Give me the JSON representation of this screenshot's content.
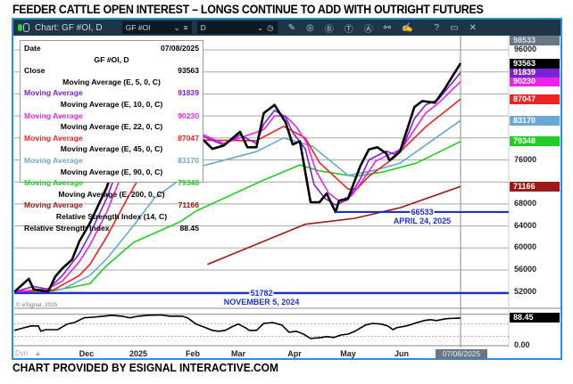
{
  "title": "FEEDER CATTLE OPEN INTEREST – LONGS CONTINUE TO ADD WITH OUTRIGHT FUTURES",
  "footer": "CHART PROVIDED BY ESIGNAL INTERACTIVE.COM",
  "toolbar": {
    "chart_label": "Chart: GF #OI, D",
    "symbol_value": "GF #OI",
    "interval_value": "D",
    "icons": [
      "status-dot-icon",
      "chevron-down-icon",
      "list-icon",
      "clock-icon",
      "pencil-icon",
      "wave-icon",
      "b-circle-icon",
      "t-circle-icon",
      "a-circle-icon",
      "link-icon",
      "edit-icon",
      "help-icon",
      "window-icon",
      "close-icon"
    ],
    "help": "?",
    "close": "✕"
  },
  "legend": {
    "date_label": "Date",
    "date_value": "07/08/2025",
    "symbol": "GF #OI, D",
    "close_label": "Close",
    "close_value": "93563",
    "rows": [
      {
        "header": "Moving Average (E, 5, 0, C)",
        "label": "Moving Average",
        "value": "91839",
        "color": "#7b22d6"
      },
      {
        "header": "Moving Average (E, 10, 0, C)",
        "label": "Moving Average",
        "value": "90230",
        "color": "#ee22ee"
      },
      {
        "header": "Moving Average (E, 22, 0, C)",
        "label": "Moving Average",
        "value": "87047",
        "color": "#ee2222"
      },
      {
        "header": "Moving Average (E, 45, 0, C)",
        "label": "Moving Average",
        "value": "83170",
        "color": "#6aa6d6"
      },
      {
        "header": "Moving Average (E, 90, 0, C)",
        "label": "Moving Average",
        "value": "79348",
        "color": "#22cc22"
      },
      {
        "header": "Moving Average (E, 200, 0, C)",
        "label": "Moving Average",
        "value": "71166",
        "color": "#a01818"
      }
    ],
    "rsi_header": "Relative Strength Index (14, C)",
    "rsi_label": "Relative Strength Index",
    "rsi_value": "88.45"
  },
  "copyright": "© eSignal, 2025",
  "dyn_label": "Dyn",
  "cursor_date": "07/08/2025",
  "chart_data": {
    "type": "line",
    "title": "FEEDER CATTLE OPEN INTEREST – LONGS CONTINUE TO ADD WITH OUTRIGHT FUTURES",
    "x_unit": "calendar days since 2024-11-01",
    "ylim": [
      50000,
      98533
    ],
    "y_top_label": "98533",
    "y_ticks": [
      "96000",
      "76000",
      "68000",
      "64000",
      "60000",
      "56000",
      "52000"
    ],
    "y_grid": [
      96000,
      92000,
      88000,
      84000,
      80000,
      76000,
      72000,
      68000,
      64000,
      60000,
      56000,
      52000
    ],
    "x_ticks": [
      {
        "label": "Dec",
        "day": 30
      },
      {
        "label": "2025",
        "day": 61
      },
      {
        "label": "Feb",
        "day": 92
      },
      {
        "label": "Mar",
        "day": 120
      },
      {
        "label": "Apr",
        "day": 151
      },
      {
        "label": "May",
        "day": 181
      },
      {
        "label": "Jun",
        "day": 212
      }
    ],
    "series": [
      {
        "name": "Close",
        "color": "#000000",
        "last": "93563",
        "points": [
          [
            0,
            52000
          ],
          [
            6,
            54400
          ],
          [
            8,
            52500
          ],
          [
            14,
            52000
          ],
          [
            17,
            54800
          ],
          [
            20,
            56300
          ],
          [
            24,
            57900
          ],
          [
            27,
            61200
          ],
          [
            32,
            64500
          ],
          [
            42,
            71000
          ],
          [
            50,
            77500
          ],
          [
            58,
            82400
          ],
          [
            66,
            84800
          ],
          [
            74,
            83200
          ],
          [
            81,
            81600
          ],
          [
            89,
            81600
          ],
          [
            99,
            79500
          ],
          [
            104,
            78000
          ],
          [
            111,
            78600
          ],
          [
            121,
            81100
          ],
          [
            125,
            78300
          ],
          [
            130,
            78300
          ],
          [
            134,
            84500
          ],
          [
            140,
            86000
          ],
          [
            146,
            82900
          ],
          [
            150,
            78800
          ],
          [
            154,
            79400
          ],
          [
            160,
            68300
          ],
          [
            165,
            68300
          ],
          [
            169,
            69900
          ],
          [
            174,
            66533
          ],
          [
            176,
            68600
          ],
          [
            181,
            69000
          ],
          [
            188,
            74800
          ],
          [
            193,
            77900
          ],
          [
            198,
            78300
          ],
          [
            203,
            77200
          ],
          [
            205,
            75900
          ],
          [
            211,
            77500
          ],
          [
            220,
            85600
          ],
          [
            225,
            86700
          ],
          [
            233,
            86400
          ],
          [
            239,
            88900
          ],
          [
            249,
            93563
          ]
        ]
      },
      {
        "name": "EMA 5",
        "color": "#7b22d6",
        "last": "91839",
        "points": [
          [
            0,
            52000
          ],
          [
            8,
            53000
          ],
          [
            14,
            52500
          ],
          [
            20,
            55000
          ],
          [
            27,
            59000
          ],
          [
            32,
            62500
          ],
          [
            42,
            69000
          ],
          [
            50,
            75500
          ],
          [
            58,
            80500
          ],
          [
            66,
            83500
          ],
          [
            74,
            83500
          ],
          [
            89,
            81800
          ],
          [
            99,
            80200
          ],
          [
            111,
            78700
          ],
          [
            121,
            80500
          ],
          [
            130,
            79000
          ],
          [
            134,
            82500
          ],
          [
            140,
            85000
          ],
          [
            146,
            83800
          ],
          [
            150,
            81000
          ],
          [
            157,
            78000
          ],
          [
            162,
            71500
          ],
          [
            168,
            69000
          ],
          [
            174,
            67800
          ],
          [
            181,
            68800
          ],
          [
            188,
            72500
          ],
          [
            193,
            76000
          ],
          [
            203,
            77600
          ],
          [
            208,
            77000
          ],
          [
            213,
            78500
          ],
          [
            220,
            83500
          ],
          [
            227,
            86000
          ],
          [
            235,
            87000
          ],
          [
            249,
            91839
          ]
        ]
      },
      {
        "name": "EMA 10",
        "color": "#ee22ee",
        "last": "90230",
        "points": [
          [
            0,
            52000
          ],
          [
            14,
            52600
          ],
          [
            20,
            54000
          ],
          [
            27,
            57500
          ],
          [
            32,
            60500
          ],
          [
            42,
            66500
          ],
          [
            50,
            72500
          ],
          [
            58,
            78000
          ],
          [
            66,
            82000
          ],
          [
            74,
            83300
          ],
          [
            89,
            82000
          ],
          [
            99,
            80500
          ],
          [
            111,
            79000
          ],
          [
            121,
            80000
          ],
          [
            134,
            81500
          ],
          [
            140,
            84000
          ],
          [
            146,
            84000
          ],
          [
            152,
            82000
          ],
          [
            158,
            79000
          ],
          [
            163,
            74000
          ],
          [
            170,
            70000
          ],
          [
            176,
            68500
          ],
          [
            183,
            69500
          ],
          [
            190,
            72500
          ],
          [
            197,
            75800
          ],
          [
            205,
            77000
          ],
          [
            212,
            78000
          ],
          [
            220,
            81500
          ],
          [
            227,
            84500
          ],
          [
            235,
            86300
          ],
          [
            249,
            90230
          ]
        ]
      },
      {
        "name": "EMA 22",
        "color": "#ee2222",
        "last": "87047",
        "points": [
          [
            0,
            52000
          ],
          [
            16,
            52300
          ],
          [
            27,
            55000
          ],
          [
            32,
            57000
          ],
          [
            42,
            62000
          ],
          [
            58,
            71000
          ],
          [
            66,
            75000
          ],
          [
            80,
            78500
          ],
          [
            100,
            79600
          ],
          [
            130,
            79500
          ],
          [
            145,
            82100
          ],
          [
            157,
            80000
          ],
          [
            165,
            75500
          ],
          [
            181,
            70700
          ],
          [
            186,
            70700
          ],
          [
            193,
            73000
          ],
          [
            208,
            76500
          ],
          [
            227,
            82000
          ],
          [
            249,
            87047
          ]
        ]
      },
      {
        "name": "EMA 45",
        "color": "#6aa6d6",
        "last": "83170",
        "points": [
          [
            0,
            52000
          ],
          [
            20,
            52500
          ],
          [
            32,
            55000
          ],
          [
            42,
            58000
          ],
          [
            58,
            64000
          ],
          [
            70,
            69000
          ],
          [
            85,
            72500
          ],
          [
            94,
            74600
          ],
          [
            130,
            77500
          ],
          [
            145,
            80000
          ],
          [
            161,
            78500
          ],
          [
            181,
            73200
          ],
          [
            195,
            74000
          ],
          [
            211,
            75400
          ],
          [
            249,
            83170
          ]
        ]
      },
      {
        "name": "EMA 90",
        "color": "#22cc22",
        "last": "79348",
        "points": [
          [
            0,
            51900
          ],
          [
            16,
            52200
          ],
          [
            32,
            53500
          ],
          [
            41,
            56500
          ],
          [
            58,
            61000
          ],
          [
            85,
            64800
          ],
          [
            94,
            66700
          ],
          [
            133,
            72200
          ],
          [
            154,
            75100
          ],
          [
            165,
            74000
          ],
          [
            185,
            73000
          ],
          [
            201,
            73800
          ],
          [
            221,
            75400
          ],
          [
            249,
            79348
          ]
        ]
      },
      {
        "name": "EMA 200",
        "color": "#a01818",
        "last": "71166",
        "points": [
          [
            101,
            57000
          ],
          [
            157,
            64300
          ],
          [
            185,
            65400
          ],
          [
            211,
            67300
          ],
          [
            249,
            71166
          ]
        ]
      }
    ],
    "annotations": [
      {
        "value": 51782,
        "label": "51782",
        "date": "NOVEMBER 5, 2024",
        "from_day": 0
      },
      {
        "value": 66533,
        "label": "66533",
        "date": "APRIL 24, 2025",
        "from_day": 174
      }
    ],
    "rsi": {
      "name": "Relative Strength Index (14, C)",
      "last": "88.45",
      "ylim": [
        0,
        100
      ],
      "y_tick": "0.00",
      "levels": [
        70,
        30
      ],
      "points": [
        [
          0,
          49
        ],
        [
          4,
          57
        ],
        [
          7,
          63
        ],
        [
          10,
          63
        ],
        [
          11,
          46
        ],
        [
          13,
          51
        ],
        [
          18,
          51
        ],
        [
          22,
          69
        ],
        [
          25,
          74
        ],
        [
          29,
          89
        ],
        [
          34,
          91
        ],
        [
          40,
          94
        ],
        [
          45,
          97
        ],
        [
          51,
          94
        ],
        [
          56,
          89
        ],
        [
          61,
          94
        ],
        [
          66,
          97
        ],
        [
          74,
          98
        ],
        [
          79,
          94
        ],
        [
          86,
          94
        ],
        [
          89,
          89
        ],
        [
          94,
          69
        ],
        [
          100,
          57
        ],
        [
          104,
          49
        ],
        [
          108,
          46
        ],
        [
          112,
          49
        ],
        [
          116,
          60
        ],
        [
          120,
          69
        ],
        [
          124,
          57
        ],
        [
          126,
          49
        ],
        [
          130,
          49
        ],
        [
          134,
          71
        ],
        [
          139,
          74
        ],
        [
          144,
          66
        ],
        [
          148,
          43
        ],
        [
          152,
          46
        ],
        [
          156,
          37
        ],
        [
          160,
          23
        ],
        [
          166,
          26
        ],
        [
          169,
          29
        ],
        [
          173,
          26
        ],
        [
          177,
          34
        ],
        [
          181,
          37
        ],
        [
          185,
          46
        ],
        [
          191,
          66
        ],
        [
          195,
          71
        ],
        [
          200,
          69
        ],
        [
          204,
          63
        ],
        [
          207,
          51
        ],
        [
          209,
          57
        ],
        [
          215,
          63
        ],
        [
          220,
          71
        ],
        [
          226,
          80
        ],
        [
          230,
          83
        ],
        [
          234,
          80
        ],
        [
          240,
          86
        ],
        [
          249,
          88.45
        ]
      ]
    }
  }
}
